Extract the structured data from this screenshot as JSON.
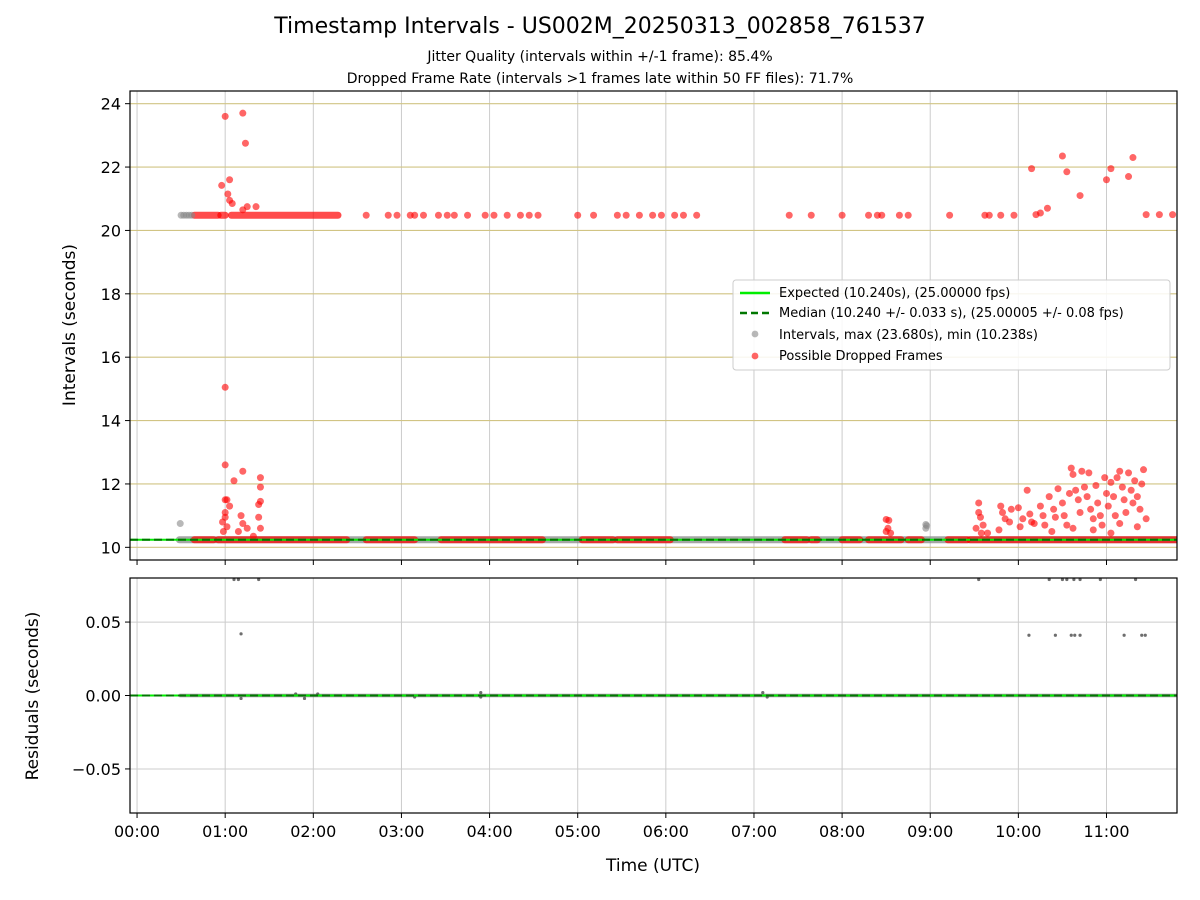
{
  "header": {
    "title": "Timestamp Intervals - US002M_20250313_002858_761537",
    "subtitle_1": "Jitter Quality (intervals within +/-1 frame): 85.4%",
    "subtitle_2": "Dropped Frame Rate (intervals >1 frames late within 50 FF files): 71.7%"
  },
  "colors": {
    "expected_line": "#00ee00",
    "median_line": "#007700",
    "intervals_points": "#888888",
    "dropped_points": "#ff0000",
    "gold_grid": "#d1c484",
    "grey_grid": "#cccccc",
    "residual_points": "#555555"
  },
  "chart_data": [
    {
      "type": "scatter",
      "panel": "top",
      "xlabel": "",
      "ylabel": "Intervals (seconds)",
      "x_unit": "hours UTC",
      "xlim": [
        -0.08,
        11.8
      ],
      "ylim": [
        9.6,
        24.4
      ],
      "yticks": [
        10,
        12,
        14,
        16,
        18,
        20,
        22,
        24
      ],
      "ytick_labels": [
        "10",
        "12",
        "14",
        "16",
        "18",
        "20",
        "22",
        "24"
      ],
      "grid": "on (vertical grey, horizontal gold)",
      "legend_position": "center-right",
      "legend": [
        "Expected (10.240s), (25.00000 fps)",
        "Median (10.240 +/- 0.033 s), (25.00005 +/- 0.08 fps)",
        "Intervals, max (23.680s), min (10.238s)",
        "Possible Dropped Frames"
      ],
      "expected_interval": 10.24,
      "median_interval": 10.24,
      "series": [
        {
          "name": "Intervals, max (23.680s), min (10.238s)",
          "segments": [
            [
              0.48,
              11.8
            ]
          ],
          "points": [
            [
              0.49,
              10.75
            ],
            [
              0.5,
              20.48
            ],
            [
              0.53,
              20.48
            ],
            [
              0.56,
              20.48
            ],
            [
              0.59,
              20.48
            ],
            [
              0.62,
              20.48
            ],
            [
              8.95,
              10.72
            ],
            [
              8.95,
              10.6
            ],
            [
              8.96,
              10.68
            ]
          ]
        },
        {
          "name": "Possible Dropped Frames",
          "segments": [
            [
              0.65,
              0.87
            ],
            [
              0.92,
              2.38
            ],
            [
              2.6,
              3.15
            ],
            [
              3.45,
              4.6
            ],
            [
              5.05,
              5.4
            ],
            [
              5.45,
              6.05
            ],
            [
              7.35,
              7.6
            ],
            [
              7.65,
              7.72
            ],
            [
              8.0,
              8.2
            ],
            [
              8.3,
              8.67
            ],
            [
              8.75,
              8.9
            ],
            [
              9.2,
              9.42
            ],
            [
              9.45,
              11.8
            ]
          ],
          "points": [
            [
              1.0,
              15.05
            ],
            [
              1.0,
              12.6
            ],
            [
              1.2,
              12.4
            ],
            [
              1.1,
              12.1
            ],
            [
              1.4,
              12.2
            ],
            [
              1.4,
              11.9
            ],
            [
              1.4,
              11.45
            ],
            [
              1.38,
              11.35
            ],
            [
              1.0,
              11.5
            ],
            [
              1.02,
              11.5
            ],
            [
              1.05,
              11.3
            ],
            [
              1.0,
              11.1
            ],
            [
              1.0,
              10.95
            ],
            [
              0.97,
              10.8
            ],
            [
              1.02,
              10.65
            ],
            [
              0.98,
              10.5
            ],
            [
              1.18,
              11.0
            ],
            [
              1.2,
              10.75
            ],
            [
              1.15,
              10.5
            ],
            [
              1.25,
              10.6
            ],
            [
              1.38,
              10.95
            ],
            [
              1.4,
              10.6
            ],
            [
              1.32,
              10.35
            ],
            [
              1.0,
              23.6
            ],
            [
              1.2,
              23.7
            ],
            [
              1.23,
              22.75
            ],
            [
              0.96,
              21.42
            ],
            [
              1.05,
              21.6
            ],
            [
              1.03,
              21.15
            ],
            [
              1.05,
              20.95
            ],
            [
              1.08,
              20.85
            ],
            [
              1.25,
              20.75
            ],
            [
              1.35,
              20.75
            ],
            [
              1.2,
              20.65
            ],
            [
              8.5,
              10.88
            ],
            [
              8.53,
              10.85
            ],
            [
              8.52,
              10.6
            ],
            [
              8.5,
              10.5
            ],
            [
              8.55,
              10.45
            ],
            [
              9.55,
              11.4
            ],
            [
              9.55,
              11.1
            ],
            [
              9.57,
              10.95
            ],
            [
              9.6,
              10.7
            ],
            [
              9.52,
              10.6
            ],
            [
              9.58,
              10.45
            ],
            [
              9.65,
              10.45
            ],
            [
              9.8,
              11.3
            ],
            [
              9.82,
              11.1
            ],
            [
              9.85,
              10.9
            ],
            [
              9.78,
              10.55
            ],
            [
              9.92,
              11.2
            ],
            [
              9.9,
              10.8
            ],
            [
              10.0,
              11.25
            ],
            [
              10.05,
              10.9
            ],
            [
              10.02,
              10.65
            ],
            [
              10.1,
              11.8
            ],
            [
              10.13,
              11.05
            ],
            [
              10.15,
              10.8
            ],
            [
              10.25,
              11.3
            ],
            [
              10.28,
              11.0
            ],
            [
              10.3,
              10.7
            ],
            [
              10.35,
              11.6
            ],
            [
              10.4,
              11.2
            ],
            [
              10.42,
              10.95
            ],
            [
              10.45,
              11.85
            ],
            [
              10.5,
              11.4
            ],
            [
              10.52,
              11.0
            ],
            [
              10.55,
              10.7
            ],
            [
              10.58,
              11.7
            ],
            [
              10.6,
              12.5
            ],
            [
              10.62,
              12.3
            ],
            [
              10.65,
              11.8
            ],
            [
              10.68,
              11.5
            ],
            [
              10.7,
              11.1
            ],
            [
              10.72,
              12.4
            ],
            [
              10.75,
              11.9
            ],
            [
              10.78,
              11.6
            ],
            [
              10.8,
              12.35
            ],
            [
              10.82,
              11.2
            ],
            [
              10.85,
              10.9
            ],
            [
              10.88,
              11.95
            ],
            [
              10.9,
              11.4
            ],
            [
              10.93,
              11.0
            ],
            [
              10.95,
              10.7
            ],
            [
              10.98,
              12.2
            ],
            [
              11.0,
              11.7
            ],
            [
              11.02,
              11.3
            ],
            [
              11.05,
              12.05
            ],
            [
              11.08,
              11.6
            ],
            [
              11.1,
              11.0
            ],
            [
              11.12,
              12.2
            ],
            [
              11.15,
              12.4
            ],
            [
              11.18,
              11.9
            ],
            [
              11.2,
              11.5
            ],
            [
              11.22,
              11.1
            ],
            [
              11.25,
              12.35
            ],
            [
              11.28,
              11.8
            ],
            [
              11.3,
              11.4
            ],
            [
              11.32,
              12.1
            ],
            [
              11.35,
              11.6
            ],
            [
              11.38,
              11.2
            ],
            [
              11.4,
              12.0
            ],
            [
              11.42,
              12.45
            ],
            [
              11.45,
              10.9
            ],
            [
              10.18,
              10.75
            ],
            [
              10.38,
              10.5
            ],
            [
              10.62,
              10.6
            ],
            [
              10.85,
              10.55
            ],
            [
              11.05,
              10.45
            ],
            [
              11.15,
              10.75
            ],
            [
              11.35,
              10.65
            ],
            [
              10.15,
              21.95
            ],
            [
              10.55,
              21.85
            ],
            [
              10.7,
              21.1
            ],
            [
              11.0,
              21.6
            ],
            [
              11.05,
              21.95
            ],
            [
              11.25,
              21.7
            ],
            [
              11.3,
              22.3
            ],
            [
              10.2,
              20.5
            ],
            [
              10.25,
              20.55
            ],
            [
              10.33,
              20.7
            ],
            [
              10.5,
              22.35
            ],
            [
              11.45,
              20.5
            ],
            [
              11.6,
              20.5
            ],
            [
              11.75,
              20.5
            ],
            [
              2.6,
              20.48
            ],
            [
              2.85,
              20.48
            ],
            [
              2.95,
              20.48
            ],
            [
              3.1,
              20.48
            ],
            [
              3.15,
              20.48
            ],
            [
              3.25,
              20.48
            ],
            [
              3.42,
              20.48
            ],
            [
              3.52,
              20.48
            ],
            [
              3.6,
              20.48
            ],
            [
              3.75,
              20.48
            ],
            [
              3.95,
              20.48
            ],
            [
              4.05,
              20.48
            ],
            [
              4.2,
              20.48
            ],
            [
              4.35,
              20.48
            ],
            [
              4.45,
              20.48
            ],
            [
              4.55,
              20.48
            ],
            [
              5.0,
              20.48
            ],
            [
              5.18,
              20.48
            ],
            [
              5.45,
              20.48
            ],
            [
              5.55,
              20.48
            ],
            [
              5.7,
              20.48
            ],
            [
              5.85,
              20.48
            ],
            [
              5.95,
              20.48
            ],
            [
              6.1,
              20.48
            ],
            [
              6.2,
              20.48
            ],
            [
              6.35,
              20.48
            ],
            [
              7.4,
              20.48
            ],
            [
              7.65,
              20.48
            ],
            [
              8.0,
              20.48
            ],
            [
              8.3,
              20.48
            ],
            [
              8.4,
              20.48
            ],
            [
              8.45,
              20.48
            ],
            [
              8.65,
              20.48
            ],
            [
              8.75,
              20.48
            ],
            [
              9.22,
              20.48
            ],
            [
              9.62,
              20.48
            ],
            [
              9.67,
              20.48
            ],
            [
              9.8,
              20.48
            ],
            [
              9.95,
              20.48
            ]
          ]
        }
      ],
      "dropped_band_at_20_48": [
        [
          0.65,
          0.92
        ],
        [
          0.95,
          1.0
        ],
        [
          1.07,
          2.28
        ]
      ]
    },
    {
      "type": "scatter",
      "panel": "bottom",
      "xlabel": "Time (UTC)",
      "ylabel": "Residuals (seconds)",
      "x_unit": "hours UTC",
      "xlim": [
        -0.08,
        11.8
      ],
      "ylim": [
        -0.08,
        0.08
      ],
      "xticks": [
        0,
        1,
        2,
        3,
        4,
        5,
        6,
        7,
        8,
        9,
        10,
        11
      ],
      "xtick_labels": [
        "00:00",
        "01:00",
        "02:00",
        "03:00",
        "04:00",
        "05:00",
        "06:00",
        "07:00",
        "08:00",
        "09:00",
        "10:00",
        "11:00"
      ],
      "yticks": [
        0.05,
        0.0,
        -0.05
      ],
      "ytick_labels": [
        "0.05",
        "0.00",
        "−0.05"
      ],
      "grid": "on",
      "zero_line_segment": [
        0.48,
        11.8
      ],
      "points": [
        [
          1.18,
          0.042
        ],
        [
          10.12,
          0.041
        ],
        [
          10.42,
          0.041
        ],
        [
          10.6,
          0.041
        ],
        [
          10.64,
          0.041
        ],
        [
          10.7,
          0.041
        ],
        [
          11.2,
          0.041
        ],
        [
          11.4,
          0.041
        ],
        [
          11.44,
          0.041
        ],
        [
          1.1,
          0.079
        ],
        [
          1.15,
          0.079
        ],
        [
          1.38,
          0.079
        ],
        [
          9.55,
          0.079
        ],
        [
          10.35,
          0.079
        ],
        [
          10.5,
          0.079
        ],
        [
          10.55,
          0.079
        ],
        [
          10.63,
          0.079
        ],
        [
          10.7,
          0.079
        ],
        [
          10.93,
          0.079
        ],
        [
          11.33,
          0.079
        ],
        [
          1.18,
          -0.002
        ],
        [
          1.8,
          0.001
        ],
        [
          1.9,
          -0.002
        ],
        [
          2.05,
          0.001
        ],
        [
          3.15,
          -0.001
        ],
        [
          3.9,
          0.002
        ],
        [
          3.9,
          -0.001
        ],
        [
          7.1,
          0.002
        ],
        [
          7.15,
          -0.001
        ]
      ]
    }
  ]
}
